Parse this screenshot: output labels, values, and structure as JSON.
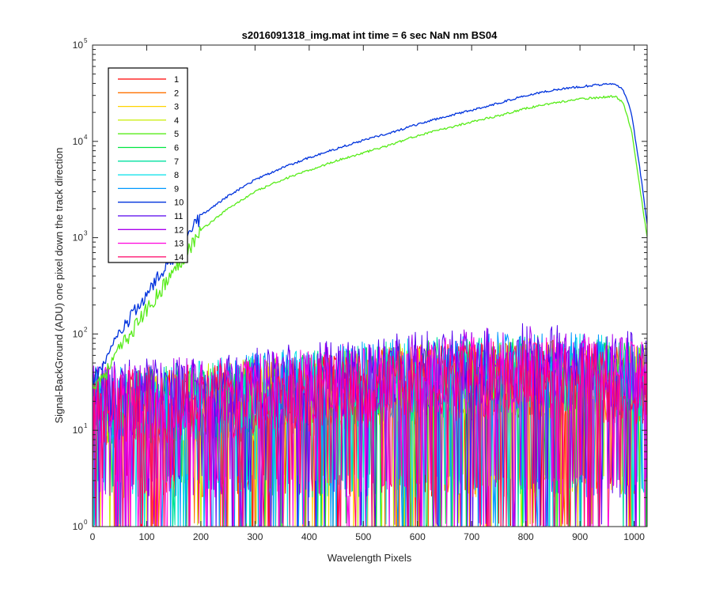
{
  "chart_data": {
    "type": "line",
    "title": "s2016091318_img.mat int time = 6 sec  NaN nm BS04",
    "xlabel": "Wavelength Pixels",
    "ylabel": "Signal-BackGround (ADU) one pixel down the track direction",
    "xlim": [
      0,
      1024
    ],
    "ylim": [
      1,
      100000
    ],
    "yscale": "log",
    "xticks": [
      "0",
      "100",
      "200",
      "300",
      "400",
      "500",
      "600",
      "700",
      "800",
      "900",
      "1000"
    ],
    "ytick_bases": [
      "10",
      "10",
      "10",
      "10",
      "10",
      "10"
    ],
    "ytick_exps": [
      "0",
      "1",
      "2",
      "3",
      "4",
      "5"
    ],
    "legend_position": "top-left",
    "grid": false,
    "series": [
      {
        "name": "1",
        "color": "#ff0000",
        "kind": "noise",
        "points": [
          [
            0,
            15
          ],
          [
            200,
            18
          ],
          [
            400,
            22
          ],
          [
            600,
            30
          ],
          [
            800,
            35
          ],
          [
            1000,
            30
          ],
          [
            1024,
            28
          ]
        ]
      },
      {
        "name": "2",
        "color": "#ff7200",
        "kind": "noise",
        "points": [
          [
            0,
            15
          ],
          [
            200,
            18
          ],
          [
            400,
            22
          ],
          [
            600,
            30
          ],
          [
            800,
            35
          ],
          [
            1000,
            30
          ],
          [
            1024,
            28
          ]
        ]
      },
      {
        "name": "3",
        "color": "#ffd400",
        "kind": "noise",
        "points": [
          [
            0,
            15
          ],
          [
            200,
            18
          ],
          [
            400,
            22
          ],
          [
            600,
            30
          ],
          [
            800,
            35
          ],
          [
            1000,
            30
          ],
          [
            1024,
            28
          ]
        ]
      },
      {
        "name": "4",
        "color": "#c8ee00",
        "kind": "noise",
        "points": [
          [
            0,
            16
          ],
          [
            200,
            19
          ],
          [
            400,
            24
          ],
          [
            600,
            32
          ],
          [
            800,
            38
          ],
          [
            1000,
            32
          ],
          [
            1024,
            30
          ]
        ]
      },
      {
        "name": "5",
        "color": "#58ec1a",
        "kind": "signal",
        "points": [
          [
            0,
            30
          ],
          [
            25,
            40
          ],
          [
            50,
            70
          ],
          [
            100,
            180
          ],
          [
            150,
            450
          ],
          [
            200,
            1200
          ],
          [
            250,
            2000
          ],
          [
            300,
            3000
          ],
          [
            350,
            4000
          ],
          [
            400,
            5000
          ],
          [
            450,
            6300
          ],
          [
            500,
            7600
          ],
          [
            550,
            9200
          ],
          [
            600,
            11500
          ],
          [
            650,
            13500
          ],
          [
            700,
            16000
          ],
          [
            750,
            18500
          ],
          [
            800,
            22000
          ],
          [
            850,
            25000
          ],
          [
            900,
            27500
          ],
          [
            950,
            29000
          ],
          [
            965,
            29500
          ],
          [
            980,
            25000
          ],
          [
            995,
            13000
          ],
          [
            1010,
            3500
          ],
          [
            1024,
            1000
          ]
        ]
      },
      {
        "name": "6",
        "color": "#00e640",
        "kind": "noise",
        "points": [
          [
            0,
            16
          ],
          [
            200,
            20
          ],
          [
            400,
            25
          ],
          [
            600,
            33
          ],
          [
            800,
            38
          ],
          [
            1000,
            33
          ],
          [
            1024,
            30
          ]
        ]
      },
      {
        "name": "7",
        "color": "#00e0a0",
        "kind": "noise",
        "points": [
          [
            0,
            17
          ],
          [
            200,
            20
          ],
          [
            400,
            26
          ],
          [
            600,
            35
          ],
          [
            800,
            40
          ],
          [
            1000,
            35
          ],
          [
            1024,
            32
          ]
        ]
      },
      {
        "name": "8",
        "color": "#00e0e8",
        "kind": "noise",
        "points": [
          [
            0,
            17
          ],
          [
            200,
            21
          ],
          [
            400,
            27
          ],
          [
            600,
            36
          ],
          [
            800,
            42
          ],
          [
            1000,
            36
          ],
          [
            1024,
            33
          ]
        ]
      },
      {
        "name": "9",
        "color": "#0099ff",
        "kind": "noise",
        "points": [
          [
            0,
            18
          ],
          [
            200,
            22
          ],
          [
            400,
            28
          ],
          [
            600,
            37
          ],
          [
            800,
            43
          ],
          [
            1000,
            37
          ],
          [
            1024,
            34
          ]
        ]
      },
      {
        "name": "10",
        "color": "#0033dd",
        "kind": "signal",
        "points": [
          [
            0,
            33
          ],
          [
            25,
            55
          ],
          [
            50,
            100
          ],
          [
            100,
            260
          ],
          [
            150,
            650
          ],
          [
            200,
            1700
          ],
          [
            250,
            2700
          ],
          [
            300,
            4000
          ],
          [
            350,
            5300
          ],
          [
            400,
            6800
          ],
          [
            450,
            8400
          ],
          [
            500,
            10300
          ],
          [
            550,
            12300
          ],
          [
            600,
            15000
          ],
          [
            650,
            18000
          ],
          [
            700,
            21000
          ],
          [
            750,
            25000
          ],
          [
            800,
            30000
          ],
          [
            850,
            34000
          ],
          [
            900,
            37000
          ],
          [
            950,
            39500
          ],
          [
            965,
            40000
          ],
          [
            980,
            34000
          ],
          [
            995,
            20000
          ],
          [
            1010,
            5500
          ],
          [
            1024,
            1400
          ]
        ]
      },
      {
        "name": "11",
        "color": "#5500ee",
        "kind": "noise",
        "points": [
          [
            0,
            20
          ],
          [
            200,
            24
          ],
          [
            400,
            32
          ],
          [
            600,
            42
          ],
          [
            800,
            50
          ],
          [
            1000,
            42
          ],
          [
            1024,
            38
          ]
        ]
      },
      {
        "name": "12",
        "color": "#aa00ee",
        "kind": "noise",
        "points": [
          [
            0,
            19
          ],
          [
            200,
            23
          ],
          [
            400,
            30
          ],
          [
            600,
            40
          ],
          [
            800,
            48
          ],
          [
            1000,
            40
          ],
          [
            1024,
            36
          ]
        ]
      },
      {
        "name": "13",
        "color": "#ff00dd",
        "kind": "noise",
        "points": [
          [
            0,
            18
          ],
          [
            200,
            21
          ],
          [
            400,
            27
          ],
          [
            600,
            34
          ],
          [
            800,
            40
          ],
          [
            1000,
            34
          ],
          [
            1024,
            31
          ]
        ]
      },
      {
        "name": "14",
        "color": "#ff0066",
        "kind": "noise",
        "points": [
          [
            0,
            17
          ],
          [
            200,
            20
          ],
          [
            400,
            25
          ],
          [
            600,
            30
          ],
          [
            800,
            33
          ],
          [
            1000,
            30
          ],
          [
            1024,
            28
          ]
        ]
      }
    ]
  }
}
